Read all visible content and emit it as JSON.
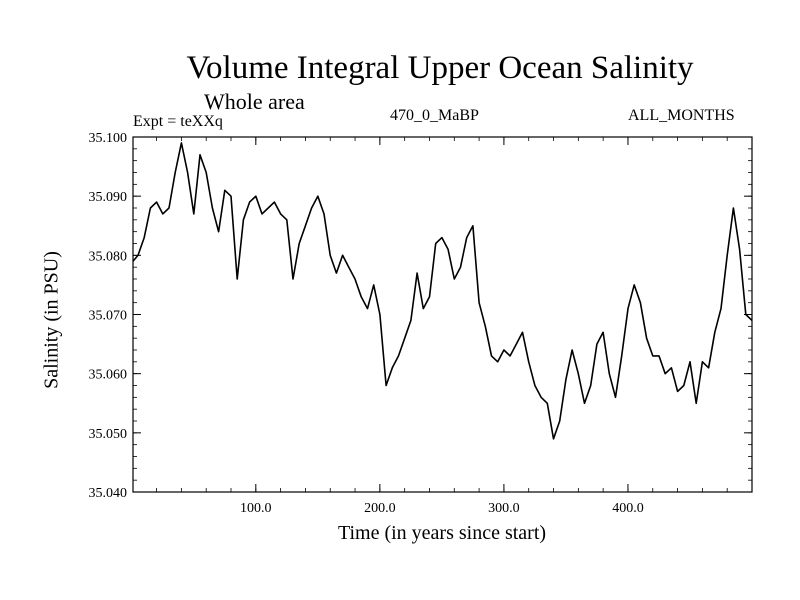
{
  "chart_data": {
    "type": "line",
    "title": "Volume Integral Upper Ocean Salinity",
    "subtitle": "Whole area",
    "annotations": {
      "left": "Expt = teXXq",
      "center": "470_0_MaBP",
      "right": "ALL_MONTHS"
    },
    "xlabel": "Time (in years since start)",
    "ylabel": "Salinity (in PSU)",
    "xlim": [
      1,
      500
    ],
    "ylim": [
      35.04,
      35.1
    ],
    "x_ticks": [
      100,
      200,
      300,
      400
    ],
    "x_tick_labels": [
      "100.0",
      "200.0",
      "300.0",
      "400.0"
    ],
    "y_ticks": [
      35.04,
      35.05,
      35.06,
      35.07,
      35.08,
      35.09,
      35.1
    ],
    "y_tick_labels": [
      "35.040",
      "35.050",
      "35.060",
      "35.070",
      "35.080",
      "35.090",
      "35.100"
    ],
    "grid": false,
    "series": [
      {
        "name": "salinity",
        "color": "#000000",
        "x": [
          1,
          5,
          10,
          15,
          20,
          25,
          30,
          35,
          40,
          45,
          50,
          55,
          60,
          65,
          70,
          75,
          80,
          85,
          90,
          95,
          100,
          105,
          110,
          115,
          120,
          125,
          130,
          135,
          140,
          145,
          150,
          155,
          160,
          165,
          170,
          175,
          180,
          185,
          190,
          195,
          200,
          205,
          210,
          215,
          220,
          225,
          230,
          235,
          240,
          245,
          250,
          255,
          260,
          265,
          270,
          275,
          280,
          285,
          290,
          295,
          300,
          305,
          310,
          315,
          320,
          325,
          330,
          335,
          340,
          345,
          350,
          355,
          360,
          365,
          370,
          375,
          380,
          385,
          390,
          395,
          400,
          405,
          410,
          415,
          420,
          425,
          430,
          435,
          440,
          445,
          450,
          455,
          460,
          465,
          470,
          475,
          480,
          485,
          490,
          495,
          500
        ],
        "y": [
          35.079,
          35.08,
          35.083,
          35.088,
          35.089,
          35.087,
          35.088,
          35.094,
          35.099,
          35.094,
          35.087,
          35.097,
          35.094,
          35.088,
          35.084,
          35.091,
          35.09,
          35.076,
          35.086,
          35.089,
          35.09,
          35.087,
          35.088,
          35.089,
          35.087,
          35.086,
          35.076,
          35.082,
          35.085,
          35.088,
          35.09,
          35.087,
          35.08,
          35.077,
          35.08,
          35.078,
          35.076,
          35.073,
          35.071,
          35.075,
          35.07,
          35.058,
          35.061,
          35.063,
          35.066,
          35.069,
          35.077,
          35.071,
          35.073,
          35.082,
          35.083,
          35.081,
          35.076,
          35.078,
          35.083,
          35.085,
          35.072,
          35.068,
          35.063,
          35.062,
          35.064,
          35.063,
          35.065,
          35.067,
          35.062,
          35.058,
          35.056,
          35.055,
          35.049,
          35.052,
          35.059,
          35.064,
          35.06,
          35.055,
          35.058,
          35.065,
          35.067,
          35.06,
          35.056,
          35.063,
          35.071,
          35.075,
          35.072,
          35.066,
          35.063,
          35.063,
          35.06,
          35.061,
          35.057,
          35.058,
          35.062,
          35.055,
          35.062,
          35.061,
          35.067,
          35.071,
          35.08,
          35.088,
          35.081,
          35.07,
          35.069
        ]
      }
    ]
  }
}
